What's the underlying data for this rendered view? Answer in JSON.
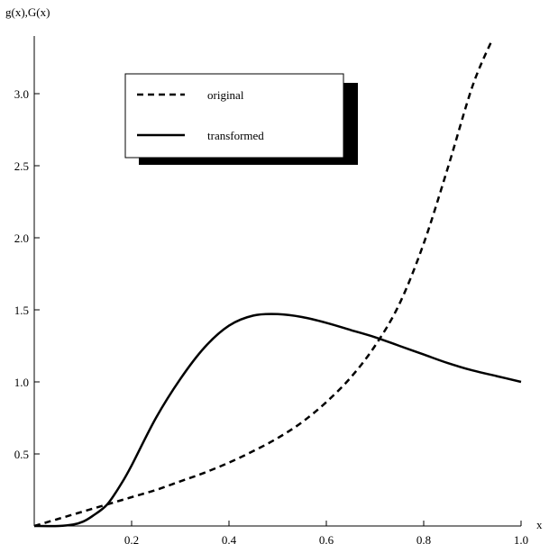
{
  "chart_data": {
    "type": "line",
    "xlabel": "x",
    "ylabel": "g(x),G(x)",
    "xlim": [
      0,
      1.0
    ],
    "ylim": [
      0,
      3.4
    ],
    "x_ticks": [
      "0.2",
      "0.4",
      "0.6",
      "0.8",
      "1.0"
    ],
    "x_tick_values": [
      0.2,
      0.4,
      0.6,
      0.8,
      1.0
    ],
    "y_ticks": [
      "0.5",
      "1.0",
      "1.5",
      "2.0",
      "2.5",
      "3.0"
    ],
    "y_tick_values": [
      0.5,
      1.0,
      1.5,
      2.0,
      2.5,
      3.0
    ],
    "legend_position": "top-left",
    "series": [
      {
        "name": "original",
        "style": "dashed",
        "x": [
          0,
          0.05,
          0.1,
          0.15,
          0.2,
          0.25,
          0.3,
          0.35,
          0.4,
          0.45,
          0.5,
          0.55,
          0.6,
          0.65,
          0.7,
          0.75,
          0.8,
          0.85,
          0.9,
          0.94
        ],
        "y": [
          0,
          0.05,
          0.1,
          0.15,
          0.2,
          0.25,
          0.31,
          0.37,
          0.44,
          0.52,
          0.61,
          0.72,
          0.86,
          1.03,
          1.25,
          1.54,
          1.96,
          2.49,
          3.05,
          3.37
        ]
      },
      {
        "name": "transformed",
        "style": "solid",
        "x": [
          0,
          0.05,
          0.08,
          0.1,
          0.12,
          0.15,
          0.18,
          0.2,
          0.25,
          0.3,
          0.35,
          0.4,
          0.45,
          0.5,
          0.55,
          0.6,
          0.65,
          0.7,
          0.75,
          0.8,
          0.85,
          0.9,
          0.95,
          1.0
        ],
        "y": [
          0,
          0,
          0.01,
          0.03,
          0.07,
          0.15,
          0.3,
          0.42,
          0.75,
          1.02,
          1.24,
          1.39,
          1.46,
          1.47,
          1.45,
          1.41,
          1.36,
          1.31,
          1.25,
          1.19,
          1.13,
          1.08,
          1.04,
          1.0
        ]
      }
    ]
  }
}
